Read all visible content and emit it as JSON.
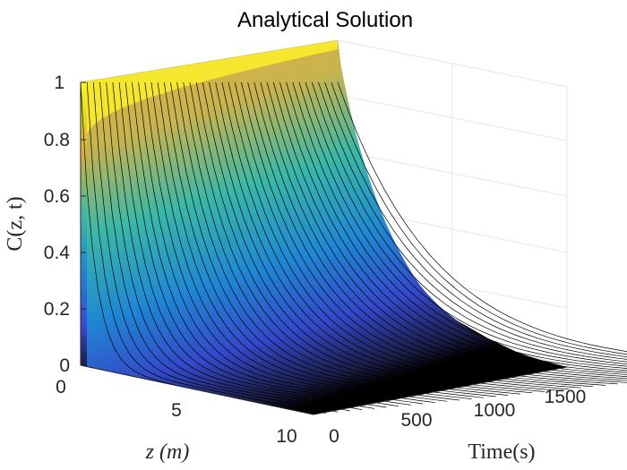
{
  "chart_data": {
    "type": "surface",
    "title": "Analytical Solution",
    "xlabel": "z (m)",
    "ylabel": "Time(s)",
    "zlabel": "C(z, t)",
    "xlim": [
      0,
      10
    ],
    "ylim": [
      0,
      1500
    ],
    "zlim": [
      0,
      1
    ],
    "x_ticks": [
      "0",
      "5",
      "10"
    ],
    "y_ticks": [
      "0",
      "500",
      "1000",
      "1500"
    ],
    "z_ticks": [
      "0",
      "0.2",
      "0.4",
      "0.6",
      "0.8",
      "1"
    ],
    "grid": true,
    "colormap": "parula",
    "function": "C(z, t) = erfc-type decay: C(0, t) = 1, C(z, 0) = 0, rising with t",
    "sample_points": [
      {
        "z": 0,
        "t": 1500,
        "C": 1.0
      },
      {
        "z": 10,
        "t": 1500,
        "C": 0.0
      },
      {
        "z": 0,
        "t": 0,
        "C": 1.0
      },
      {
        "z": 10,
        "t": 0,
        "C": 0.0
      }
    ]
  }
}
